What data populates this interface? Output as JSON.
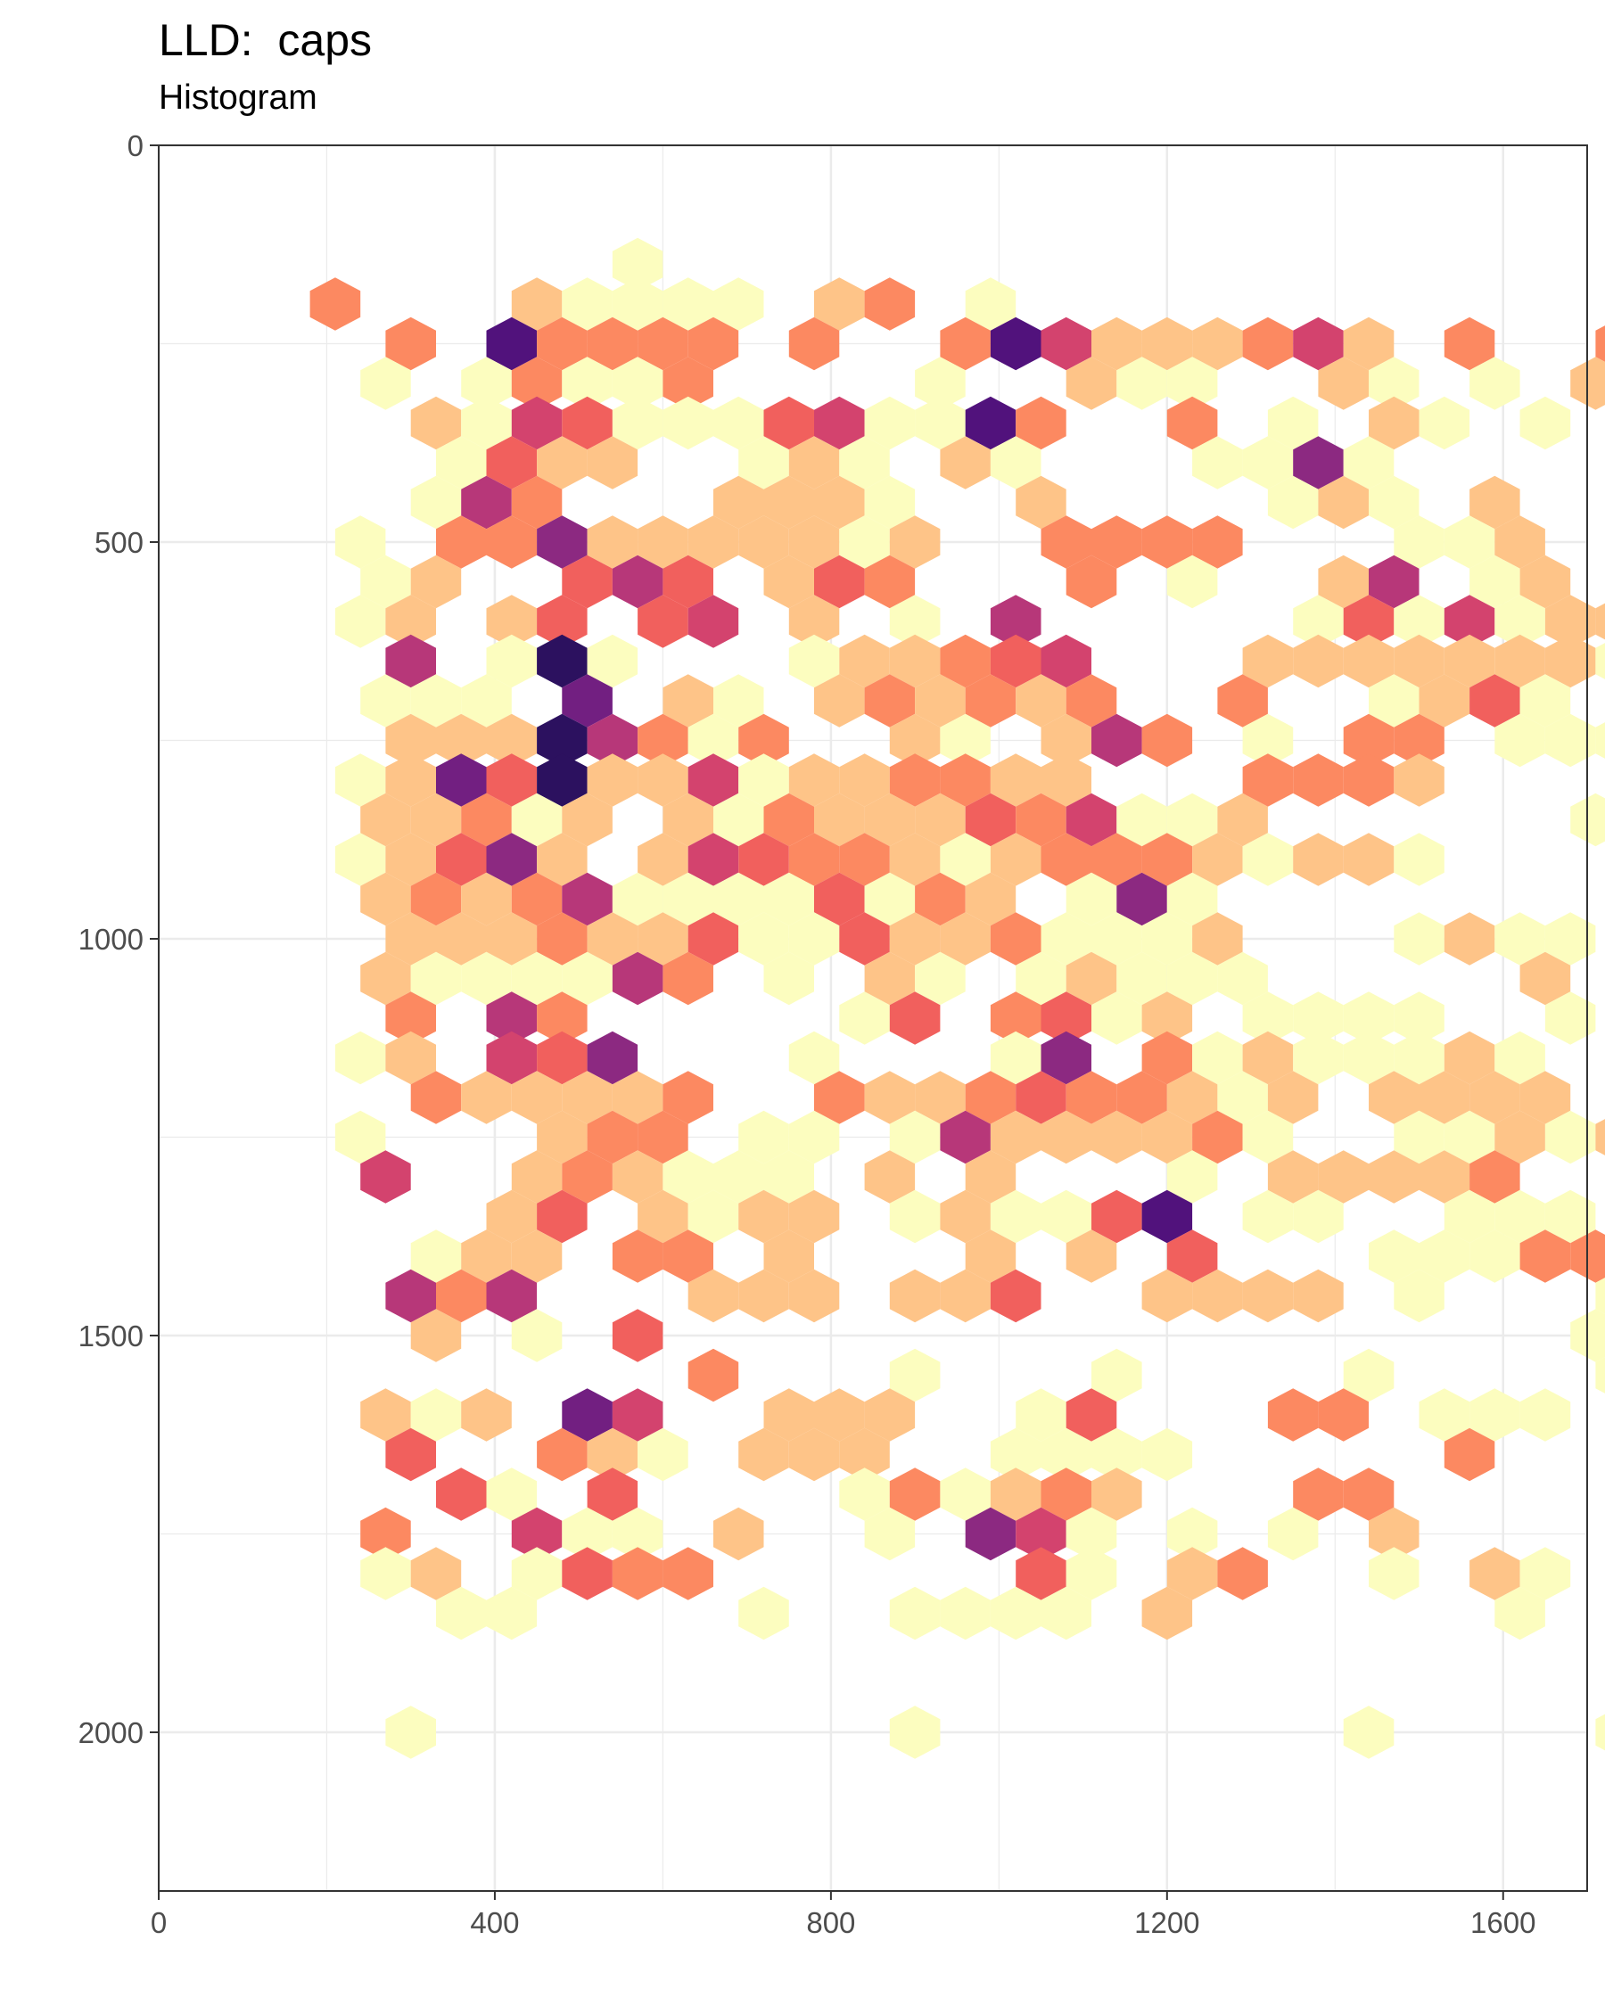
{
  "chart_data": {
    "type": "heatmap",
    "subtype": "hexbin",
    "title": "LLD:  caps",
    "subtitle": "Histogram",
    "xlabel": "",
    "ylabel": "",
    "xlim": [
      0,
      1700
    ],
    "ylim": [
      2200,
      0
    ],
    "y_reversed": true,
    "x_ticks": [
      0,
      400,
      800,
      1200,
      1600
    ],
    "y_ticks": [
      0,
      500,
      1000,
      1500,
      2000
    ],
    "grid": true,
    "legend": "none",
    "hex_width_x": 60,
    "row_spacing_y": 50,
    "colormap": [
      "#fcfdbf",
      "#fec488",
      "#fc8961",
      "#f1605d",
      "#d3436e",
      "#b73779",
      "#8c2981",
      "#721f81",
      "#51127c",
      "#2c115f",
      "#0a0822"
    ],
    "rows": [
      {
        "y": 150,
        "x_start": 570,
        "counts": [
          1
        ]
      },
      {
        "y": 200,
        "x_start": 210,
        "counts": [
          3,
          0,
          0,
          0,
          2,
          1,
          1,
          1,
          1,
          0,
          2,
          3,
          0,
          1,
          0,
          0,
          0,
          0,
          0,
          0,
          0,
          0,
          0,
          0,
          0,
          0,
          0,
          0,
          0,
          0,
          0,
          0,
          0,
          0,
          0,
          0,
          0,
          0,
          0,
          0,
          0,
          0,
          0,
          0,
          0,
          0,
          0,
          0,
          0,
          0,
          0,
          0,
          0,
          0,
          0
        ]
      },
      {
        "y": 250,
        "x_start": 300,
        "counts": [
          3,
          0,
          9,
          3,
          3,
          3,
          3,
          0,
          3,
          0,
          0,
          3,
          9,
          5,
          2,
          2,
          2,
          3,
          5,
          2,
          0,
          3,
          0,
          0,
          3
        ]
      },
      {
        "y": 300,
        "x_start": 270,
        "counts": [
          1,
          0,
          1,
          3,
          1,
          1,
          3,
          0,
          0,
          0,
          0,
          1,
          0,
          0,
          2,
          1,
          1,
          0,
          0,
          2,
          1,
          0,
          1,
          0,
          2,
          1
        ]
      },
      {
        "y": 350,
        "x_start": 330,
        "counts": [
          2,
          1,
          5,
          4,
          1,
          1,
          1,
          4,
          5,
          1,
          1,
          9,
          3,
          0,
          0,
          3,
          0,
          1,
          0,
          2,
          1,
          0,
          1,
          0,
          2
        ]
      },
      {
        "y": 400,
        "x_start": 360,
        "counts": [
          1,
          4,
          2,
          2,
          0,
          0,
          1,
          2,
          1,
          0,
          2,
          1,
          0,
          0,
          0,
          1,
          1,
          7,
          1,
          0,
          0,
          0,
          0,
          0
        ]
      },
      {
        "y": 450,
        "x_start": 330,
        "counts": [
          1,
          6,
          3,
          0,
          0,
          0,
          2,
          2,
          2,
          1,
          0,
          0,
          2,
          0,
          0,
          0,
          0,
          1,
          2,
          1,
          0,
          2
        ]
      },
      {
        "y": 500,
        "x_start": 240,
        "counts": [
          1,
          0,
          3,
          3,
          7,
          2,
          2,
          2,
          2,
          2,
          1,
          2,
          0,
          0,
          3,
          3,
          3,
          3,
          0,
          0,
          0,
          1,
          1,
          2,
          0,
          0,
          0,
          0,
          0,
          0,
          1
        ]
      },
      {
        "y": 550,
        "x_start": 270,
        "counts": [
          1,
          2,
          0,
          0,
          4,
          6,
          4,
          0,
          2,
          4,
          3,
          0,
          0,
          0,
          3,
          0,
          1,
          0,
          0,
          2,
          6,
          0,
          1,
          2,
          0
        ]
      },
      {
        "y": 600,
        "x_start": 240,
        "counts": [
          1,
          2,
          0,
          2,
          4,
          0,
          4,
          5,
          0,
          2,
          0,
          1,
          0,
          6,
          0,
          0,
          0,
          0,
          0,
          1,
          4,
          1,
          5,
          1,
          2,
          2,
          3,
          0,
          1
        ]
      },
      {
        "y": 650,
        "x_start": 300,
        "counts": [
          6,
          0,
          1,
          10,
          1,
          0,
          0,
          0,
          1,
          2,
          2,
          3,
          4,
          5,
          0,
          0,
          0,
          2,
          2,
          2,
          2,
          2,
          2,
          2,
          1,
          0,
          0,
          1
        ]
      },
      {
        "y": 700,
        "x_start": 270,
        "counts": [
          1,
          1,
          1,
          0,
          8,
          0,
          2,
          1,
          0,
          2,
          3,
          2,
          3,
          2,
          3,
          0,
          0,
          3,
          0,
          0,
          1,
          2,
          4,
          1,
          0,
          0,
          0,
          1
        ]
      },
      {
        "y": 750,
        "x_start": 300,
        "counts": [
          2,
          2,
          2,
          10,
          6,
          3,
          1,
          3,
          0,
          0,
          2,
          1,
          0,
          2,
          6,
          3,
          0,
          1,
          0,
          3,
          3,
          0,
          1,
          1,
          1,
          5,
          1
        ]
      },
      {
        "y": 800,
        "x_start": 240,
        "counts": [
          1,
          2,
          8,
          4,
          10,
          2,
          2,
          5,
          1,
          2,
          2,
          3,
          3,
          2,
          2,
          0,
          0,
          0,
          3,
          3,
          3,
          2,
          0,
          0,
          0,
          0,
          0,
          2
        ]
      },
      {
        "y": 850,
        "x_start": 270,
        "counts": [
          2,
          2,
          3,
          1,
          2,
          0,
          2,
          1,
          3,
          2,
          2,
          2,
          4,
          3,
          5,
          1,
          1,
          2,
          0,
          0,
          0,
          0,
          0,
          0,
          1,
          2,
          1,
          0,
          2
        ]
      },
      {
        "y": 900,
        "x_start": 240,
        "counts": [
          1,
          2,
          4,
          7,
          2,
          0,
          2,
          5,
          4,
          3,
          3,
          2,
          1,
          2,
          3,
          3,
          3,
          2,
          1,
          2,
          2,
          1,
          0,
          0,
          0,
          0,
          0,
          2
        ]
      },
      {
        "y": 950,
        "x_start": 270,
        "counts": [
          2,
          3,
          2,
          3,
          6,
          1,
          1,
          1,
          1,
          4,
          1,
          3,
          2,
          0,
          1,
          7,
          1,
          0,
          0,
          0,
          0,
          0,
          0,
          0,
          0,
          0,
          0,
          0,
          0
        ]
      },
      {
        "y": 1000,
        "x_start": 240,
        "counts": [
          0,
          2,
          2,
          2,
          3,
          2,
          2,
          4,
          1,
          1,
          4,
          2,
          2,
          3,
          1,
          1,
          1,
          2,
          0,
          0,
          0,
          1,
          2,
          1,
          1,
          0,
          0,
          0
        ]
      },
      {
        "y": 1050,
        "x_start": 270,
        "counts": [
          2,
          1,
          1,
          1,
          1,
          6,
          3,
          0,
          1,
          0,
          2,
          1,
          0,
          1,
          2,
          1,
          1,
          1,
          0,
          0,
          0,
          0,
          0,
          2,
          0,
          0,
          0,
          0,
          0
        ]
      },
      {
        "y": 1100,
        "x_start": 300,
        "counts": [
          3,
          0,
          6,
          3,
          0,
          0,
          0,
          0,
          0,
          1,
          4,
          0,
          3,
          4,
          1,
          2,
          0,
          1,
          1,
          1,
          1,
          0,
          0,
          1
        ]
      },
      {
        "y": 1150,
        "x_start": 240,
        "counts": [
          1,
          2,
          0,
          5,
          4,
          7,
          0,
          0,
          0,
          1,
          0,
          0,
          0,
          1,
          7,
          0,
          3,
          1,
          2,
          1,
          1,
          1,
          2,
          1,
          0,
          0,
          0,
          0
        ]
      },
      {
        "y": 1200,
        "x_start": 270,
        "counts": [
          0,
          3,
          2,
          2,
          2,
          2,
          3,
          0,
          0,
          3,
          2,
          2,
          3,
          4,
          3,
          3,
          2,
          1,
          2,
          0,
          2,
          2,
          2,
          2,
          0,
          1,
          1
        ]
      },
      {
        "y": 1250,
        "x_start": 240,
        "counts": [
          1,
          0,
          0,
          0,
          2,
          3,
          3,
          0,
          1,
          1,
          0,
          1,
          6,
          2,
          2,
          2,
          2,
          3,
          1,
          0,
          0,
          1,
          1,
          2,
          1,
          2,
          0,
          0
        ]
      },
      {
        "y": 1300,
        "x_start": 270,
        "counts": [
          5,
          0,
          0,
          2,
          3,
          2,
          1,
          1,
          1,
          0,
          2,
          0,
          2,
          0,
          0,
          0,
          1,
          0,
          2,
          2,
          2,
          2,
          3,
          0,
          0,
          0,
          0
        ]
      },
      {
        "y": 1350,
        "x_start": 300,
        "counts": [
          0,
          0,
          2,
          4,
          0,
          2,
          1,
          2,
          2,
          0,
          1,
          2,
          1,
          1,
          4,
          9,
          0,
          1,
          1,
          0,
          0,
          1,
          1,
          1,
          0,
          0,
          0
        ]
      },
      {
        "y": 1400,
        "x_start": 270,
        "counts": [
          0,
          1,
          2,
          2,
          0,
          3,
          3,
          0,
          2,
          0,
          0,
          0,
          2,
          0,
          2,
          0,
          4,
          0,
          0,
          0,
          1,
          1,
          1,
          3,
          3,
          3,
          2
        ]
      },
      {
        "y": 1450,
        "x_start": 300,
        "counts": [
          6,
          3,
          6,
          0,
          0,
          0,
          2,
          2,
          2,
          0,
          2,
          2,
          4,
          0,
          0,
          2,
          2,
          2,
          2,
          0,
          1,
          0,
          0,
          0,
          1
        ]
      },
      {
        "y": 1500,
        "x_start": 270,
        "counts": [
          0,
          2,
          0,
          1,
          0,
          4,
          0,
          0,
          0,
          0,
          0,
          0,
          0,
          0,
          0,
          0,
          0,
          0,
          0,
          0,
          0,
          0,
          0,
          0,
          1
        ]
      },
      {
        "y": 1550,
        "x_start": 300,
        "counts": [
          0,
          0,
          0,
          0,
          0,
          0,
          3,
          0,
          0,
          0,
          1,
          0,
          0,
          0,
          1,
          0,
          0,
          0,
          0,
          1,
          0,
          0,
          0,
          0,
          1
        ]
      },
      {
        "y": 1600,
        "x_start": 270,
        "counts": [
          2,
          1,
          2,
          0,
          8,
          5,
          0,
          0,
          2,
          2,
          2,
          0,
          0,
          1,
          4,
          0,
          0,
          0,
          3,
          3,
          0,
          1,
          1,
          1,
          0,
          0,
          0
        ]
      },
      {
        "y": 1650,
        "x_start": 300,
        "counts": [
          4,
          0,
          0,
          3,
          2,
          1,
          0,
          2,
          2,
          2,
          0,
          0,
          1,
          1,
          1,
          1,
          0,
          0,
          0,
          0,
          0,
          3
        ]
      },
      {
        "y": 1700,
        "x_start": 300,
        "counts": [
          0,
          4,
          1,
          0,
          4,
          0,
          0,
          0,
          0,
          1,
          3,
          1,
          2,
          3,
          2,
          0,
          0,
          0,
          3,
          3,
          0,
          0,
          0,
          0,
          0,
          0,
          0,
          0,
          1
        ]
      },
      {
        "y": 1750,
        "x_start": 270,
        "counts": [
          3,
          0,
          0,
          5,
          1,
          1,
          0,
          2,
          0,
          0,
          1,
          0,
          7,
          5,
          1,
          0,
          1,
          0,
          1,
          0,
          2,
          0,
          0,
          0,
          0,
          0,
          2
        ]
      },
      {
        "y": 1800,
        "x_start": 270,
        "counts": [
          1,
          2,
          0,
          1,
          4,
          3,
          3,
          0,
          0,
          0,
          0,
          0,
          0,
          4,
          1,
          0,
          2,
          3,
          0,
          0,
          1,
          0,
          2,
          1
        ]
      },
      {
        "y": 1850,
        "x_start": 360,
        "counts": [
          1,
          1,
          0,
          0,
          0,
          0,
          1,
          0,
          0,
          1,
          1,
          1,
          1,
          0,
          2,
          0,
          0,
          0,
          0,
          0,
          0,
          1
        ]
      },
      {
        "y": 1900,
        "x_start": 300,
        "counts": [
          0,
          0,
          0,
          0,
          0,
          0,
          0,
          0,
          0,
          0,
          0,
          0,
          0,
          0,
          0,
          0,
          0,
          0,
          0,
          0,
          0,
          0,
          0
        ]
      },
      {
        "y": 2000,
        "x_start": 300,
        "counts": [
          1,
          0,
          0,
          0,
          0,
          0,
          0,
          0,
          0,
          0,
          1,
          0,
          0,
          0,
          0,
          0,
          0,
          0,
          0,
          1,
          0,
          0,
          0,
          0,
          1
        ]
      }
    ]
  }
}
